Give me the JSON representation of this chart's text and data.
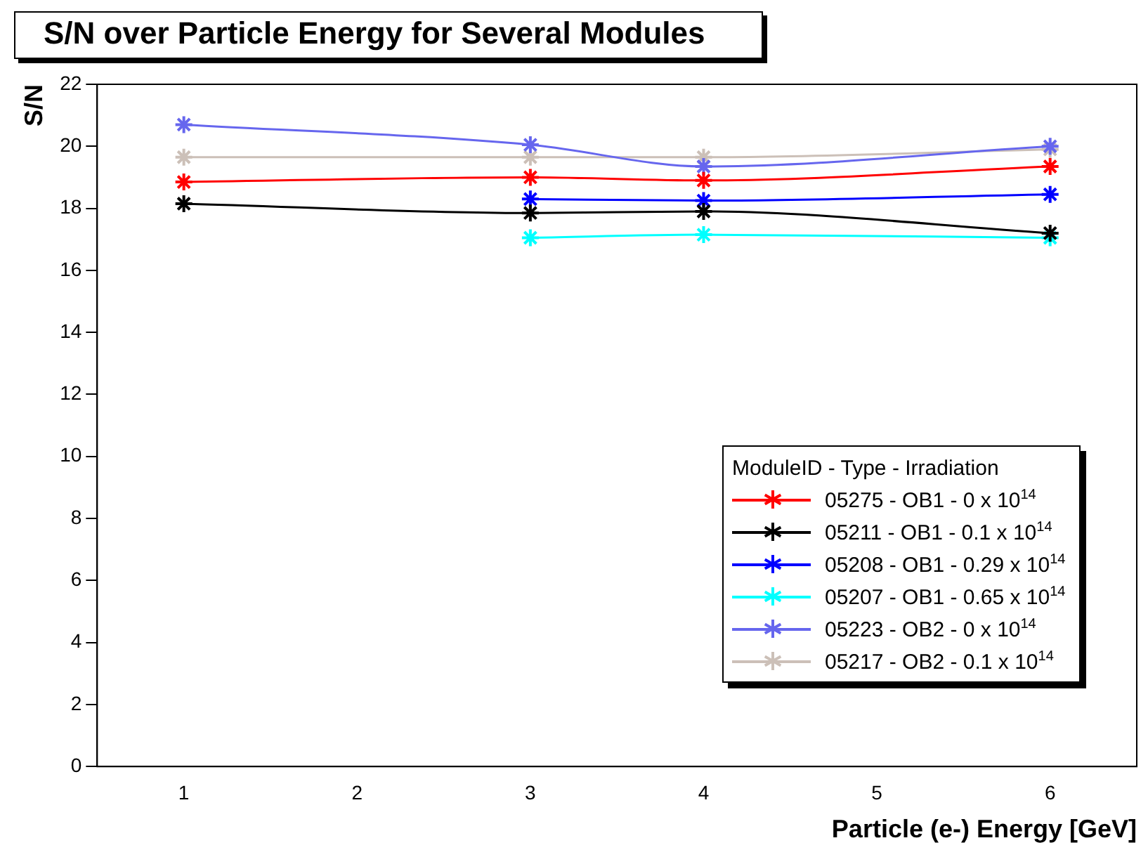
{
  "chart_data": {
    "type": "line",
    "title": "S/N over Particle Energy for Several Modules",
    "xlabel": "Particle (e-) Energy [GeV]",
    "ylabel": "S/N",
    "legend_title": "ModuleID - Type - Irradiation",
    "xlim": [
      0.5,
      6.5
    ],
    "xticks": [
      1,
      2,
      3,
      4,
      5,
      6
    ],
    "ylim": [
      0,
      22
    ],
    "yticks": [
      0,
      2,
      4,
      6,
      8,
      10,
      12,
      14,
      16,
      18,
      20,
      22
    ],
    "grid": false,
    "legend": "bottom right",
    "marker": "cross",
    "line_style": "solid",
    "series": [
      {
        "name": "05275 - OB1 - 0 x 10$^{14}$",
        "color": "#ff0000",
        "x": [
          1,
          3,
          4,
          6
        ],
        "values": [
          18.85,
          19.0,
          18.9,
          19.35
        ]
      },
      {
        "name": "05211 - OB1 - 0.1 x 10$^{14}$",
        "color": "#000000",
        "x": [
          1,
          3,
          4,
          6
        ],
        "values": [
          18.15,
          17.85,
          17.9,
          17.2
        ]
      },
      {
        "name": "05208 - OB1 - 0.29 x 10$^{14}$",
        "color": "#0000ff",
        "x": [
          3,
          4,
          6
        ],
        "values": [
          18.3,
          18.25,
          18.45
        ]
      },
      {
        "name": "05207 - OB1 - 0.65 x 10$^{14}$",
        "color": "#00ffff",
        "x": [
          3,
          4,
          6
        ],
        "values": [
          17.05,
          17.15,
          17.05
        ]
      },
      {
        "name": "05223 - OB2 - 0 x 10$^{14}$",
        "color": "#6666ee",
        "x": [
          1,
          3,
          4,
          6
        ],
        "values": [
          20.7,
          20.05,
          19.35,
          20.0
        ]
      },
      {
        "name": "05217 - OB2 - 0.1 x 10$^{14}$",
        "color": "#ccc0b8",
        "x": [
          1,
          3,
          4,
          6
        ],
        "values": [
          19.65,
          19.65,
          19.65,
          19.9
        ]
      }
    ]
  }
}
